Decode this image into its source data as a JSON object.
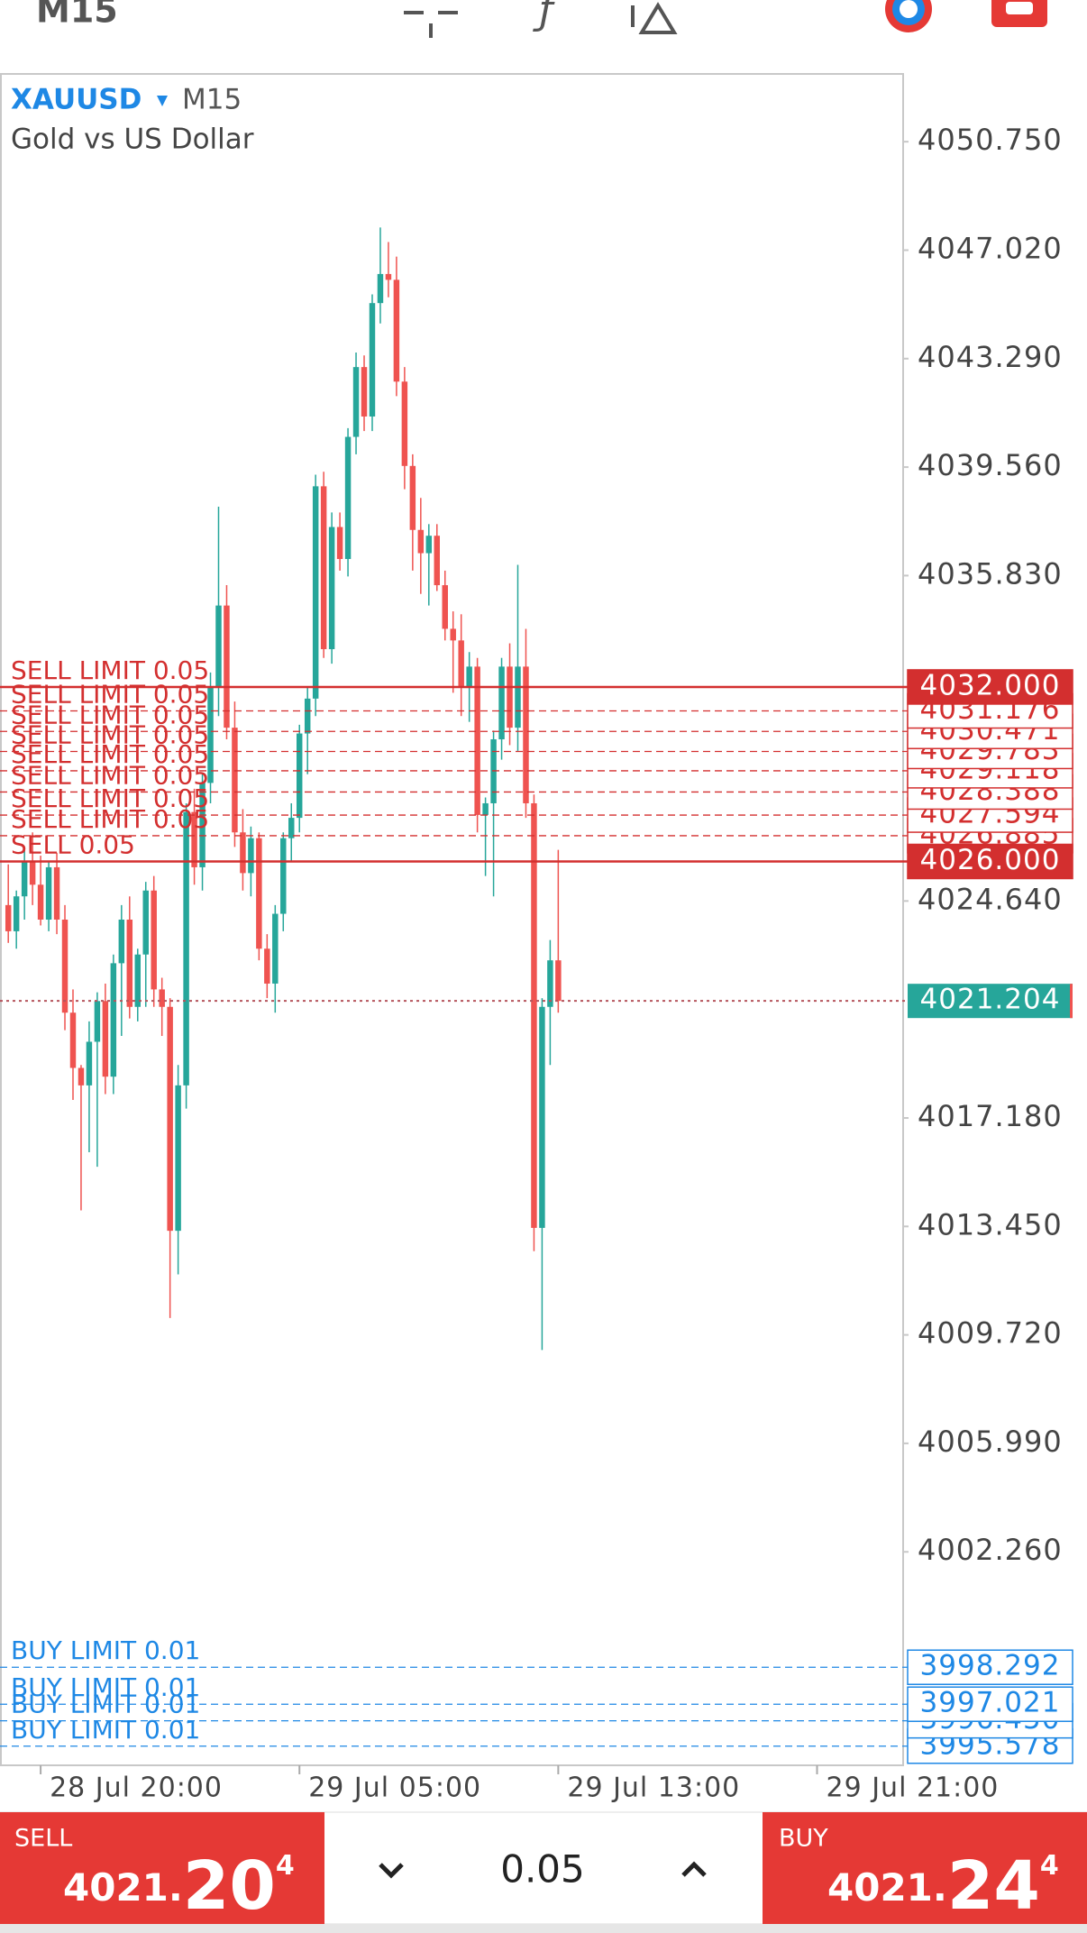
{
  "header": {
    "timeframe": "M15"
  },
  "chart_data": {
    "type": "candlestick",
    "symbol": "XAUUSD",
    "timeframe": "M15",
    "description": "Gold vs US Dollar",
    "up_color": "#26a69a",
    "down_color": "#ef5350",
    "ylim": [
      3994.92,
      4053.08
    ],
    "yticks": [
      {
        "value": 4050.75,
        "label": "4050.750"
      },
      {
        "value": 4047.02,
        "label": "4047.020"
      },
      {
        "value": 4043.29,
        "label": "4043.290"
      },
      {
        "value": 4039.56,
        "label": "4039.560"
      },
      {
        "value": 4035.83,
        "label": "4035.830"
      },
      {
        "value": 4024.64,
        "label": "4024.640"
      },
      {
        "value": 4017.18,
        "label": "4017.180"
      },
      {
        "value": 4013.45,
        "label": "4013.450"
      },
      {
        "value": 4009.72,
        "label": "4009.720"
      },
      {
        "value": 4005.99,
        "label": "4005.990"
      },
      {
        "value": 4002.26,
        "label": "4002.260"
      }
    ],
    "categories": [
      null,
      null,
      null,
      null,
      "28 Jul 20:00",
      null,
      null,
      null,
      null,
      null,
      null,
      null,
      null,
      null,
      null,
      null,
      null,
      null,
      null,
      null,
      null,
      null,
      null,
      null,
      null,
      null,
      null,
      null,
      null,
      null,
      null,
      null,
      null,
      null,
      null,
      null,
      "29 Jul 05:00",
      null,
      null,
      null,
      null,
      null,
      null,
      null,
      null,
      null,
      null,
      null,
      null,
      null,
      null,
      null,
      null,
      null,
      null,
      null,
      null,
      null,
      null,
      null,
      null,
      null,
      null,
      null,
      null,
      null,
      null,
      null,
      "29 Jul 13:00",
      null,
      null,
      null,
      null,
      null,
      null,
      null,
      null,
      null,
      null,
      null,
      null,
      null,
      null,
      null,
      null,
      null,
      null,
      null,
      null,
      null,
      null,
      null,
      null,
      null,
      null,
      null,
      null,
      null,
      null,
      null,
      "29 Jul 21:00"
    ],
    "open": [
      4024.5,
      4023.6,
      4024.8,
      4026.0,
      4025.2,
      4024.0,
      4025.8,
      4024.0,
      4020.8,
      4018.9,
      4018.3,
      4019.8,
      4021.2,
      4018.6,
      4022.5,
      4024.0,
      4021.0,
      4022.8,
      4025.0,
      4021.6,
      4021.0,
      4013.3,
      4018.3,
      4027.7,
      4025.8,
      4028.7,
      4032.0,
      4034.8,
      4030.6,
      4027.0,
      4025.6,
      4026.8,
      4023.0,
      4021.8,
      4024.2,
      4026.8,
      4027.5,
      4030.4,
      4031.6,
      4038.9,
      4033.3,
      4037.5,
      4036.4,
      4040.6,
      4043.0,
      4041.3,
      4045.2,
      4046.2,
      4046.0,
      4042.5,
      4039.6,
      4037.4,
      4036.6,
      4037.2,
      4035.5,
      4034.0,
      4033.6,
      4032.0,
      4032.7,
      4027.6,
      4028.0,
      4030.2,
      4032.7,
      4030.6,
      4032.7,
      4028.0,
      4013.4,
      4021.0,
      4022.6,
      null,
      null,
      null,
      null,
      null,
      null,
      null,
      null,
      null,
      null,
      null,
      null,
      null,
      null,
      null,
      null,
      null,
      null,
      null,
      null,
      null,
      null,
      null,
      null,
      null,
      null,
      null,
      null,
      null,
      null,
      null,
      null
    ],
    "high": [
      4025.9,
      4025.0,
      4026.5,
      4027.0,
      4026.2,
      4026.0,
      4026.3,
      4024.5,
      4021.6,
      4019.0,
      4020.5,
      4021.5,
      4021.8,
      4022.8,
      4024.5,
      4024.8,
      4023.0,
      4025.3,
      4025.5,
      4022.0,
      4021.3,
      4019.0,
      4028.0,
      4028.5,
      4029.0,
      4032.5,
      4038.2,
      4035.5,
      4031.5,
      4027.8,
      4027.2,
      4027.0,
      4023.5,
      4024.5,
      4027.0,
      4028.0,
      4030.7,
      4032.0,
      4039.3,
      4039.4,
      4038.0,
      4038.0,
      4040.9,
      4043.5,
      4043.4,
      4045.5,
      4047.8,
      4047.3,
      4046.8,
      4043.0,
      4040.0,
      4038.5,
      4037.6,
      4037.6,
      4036.0,
      4034.6,
      4034.5,
      4033.2,
      4033.0,
      4028.2,
      4030.5,
      4033.0,
      4033.5,
      4036.2,
      4034.0,
      4028.3,
      4021.3,
      4023.3,
      4026.4,
      null,
      null,
      null,
      null,
      null,
      null,
      null,
      null,
      null,
      null,
      null,
      null,
      null,
      null,
      null,
      null,
      null,
      null,
      null,
      null,
      null,
      null,
      null,
      null,
      null,
      null,
      null,
      null,
      null,
      null,
      null,
      null
    ],
    "low": [
      4023.2,
      4023.0,
      4024.0,
      4024.5,
      4023.8,
      4023.6,
      4023.5,
      4020.2,
      4017.8,
      4014.0,
      4016.0,
      4015.5,
      4018.0,
      4018.0,
      4020.0,
      4020.6,
      4020.5,
      4021.0,
      4021.0,
      4020.0,
      4010.3,
      4011.8,
      4017.5,
      4025.2,
      4025.0,
      4028.0,
      4031.0,
      4030.2,
      4026.5,
      4025.0,
      4024.8,
      4022.6,
      4021.3,
      4020.8,
      4023.6,
      4026.0,
      4027.0,
      4029.0,
      4031.0,
      4033.0,
      4032.8,
      4036.0,
      4035.8,
      4040.0,
      4040.8,
      4040.8,
      4044.5,
      4045.4,
      4042.0,
      4038.8,
      4036.0,
      4035.2,
      4034.8,
      4035.3,
      4033.6,
      4031.8,
      4031.0,
      4030.8,
      4027.0,
      4025.5,
      4024.8,
      4029.5,
      4030.0,
      4029.8,
      4027.5,
      4012.6,
      4009.2,
      4019.0,
      4020.8,
      null,
      null,
      null,
      null,
      null,
      null,
      null,
      null,
      null,
      null,
      null,
      null,
      null,
      null,
      null,
      null,
      null,
      null,
      null,
      null,
      null,
      null,
      null,
      null,
      null,
      null,
      null,
      null,
      null,
      null,
      null,
      null
    ],
    "close": [
      4023.6,
      4024.8,
      4026.0,
      4025.2,
      4024.0,
      4025.8,
      4024.0,
      4020.8,
      4018.9,
      4018.3,
      4019.8,
      4021.2,
      4018.6,
      4022.5,
      4024.0,
      4021.0,
      4022.8,
      4025.0,
      4021.6,
      4021.0,
      4013.3,
      4018.3,
      4027.7,
      4025.8,
      4028.7,
      4032.0,
      4034.8,
      4030.6,
      4027.0,
      4025.6,
      4026.8,
      4023.0,
      4021.8,
      4024.2,
      4026.8,
      4027.5,
      4030.4,
      4031.6,
      4038.9,
      4033.3,
      4037.5,
      4036.4,
      4040.6,
      4043.0,
      4041.3,
      4045.2,
      4046.2,
      4046.0,
      4042.5,
      4039.6,
      4037.4,
      4036.6,
      4037.2,
      4035.5,
      4034.0,
      4033.6,
      4032.0,
      4032.7,
      4027.6,
      4028.0,
      4030.2,
      4032.7,
      4030.6,
      4032.7,
      4028.0,
      4013.4,
      4021.0,
      4022.6,
      4021.204,
      null,
      null,
      null,
      null,
      null,
      null,
      null,
      null,
      null,
      null,
      null,
      null,
      null,
      null,
      null,
      null,
      null,
      null,
      null,
      null,
      null,
      null,
      null,
      null,
      null,
      null,
      null,
      null,
      null,
      null,
      null,
      null
    ],
    "sell_orders": {
      "color": "#d32f2f",
      "orders": [
        {
          "label": "SELL LIMIT 0.05",
          "price": {
            "value": 4032.0,
            "label": "4032.000"
          },
          "line": "solid"
        },
        {
          "label": "SELL LIMIT 0.05",
          "price": {
            "value": 4031.176,
            "label": "4031.176"
          },
          "line": "dashed"
        },
        {
          "label": "SELL LIMIT 0.05",
          "price": {
            "value": 4030.471,
            "label": "4030.471"
          },
          "line": "dashed"
        },
        {
          "label": "SELL LIMIT 0.05",
          "price": {
            "value": 4029.783,
            "label": "4029.783"
          },
          "line": "dashed"
        },
        {
          "label": "SELL LIMIT 0.05",
          "price": {
            "value": 4029.118,
            "label": "4029.118"
          },
          "line": "dashed"
        },
        {
          "label": "SELL LIMIT 0.05",
          "price": {
            "value": 4028.388,
            "label": "4028.388"
          },
          "line": "dashed"
        },
        {
          "label": "SELL LIMIT 0.05",
          "price": {
            "value": 4027.594,
            "label": "4027.594"
          },
          "line": "dashed"
        },
        {
          "label": "SELL LIMIT 0.05",
          "price": {
            "value": 4026.885,
            "label": "4026.885"
          },
          "line": "dashed"
        },
        {
          "label": "SELL 0.05",
          "price": {
            "value": 4026.0,
            "label": "4026.000"
          },
          "line": "solid"
        }
      ]
    },
    "buy_orders": {
      "color": "#1e88e5",
      "orders": [
        {
          "label": "BUY LIMIT 0.01",
          "price": {
            "value": 3998.292,
            "label": "3998.292"
          },
          "line": "dashed"
        },
        {
          "label": "BUY LIMIT 0.01",
          "price": {
            "value": 3997.021,
            "label": "3997.021"
          },
          "line": "dashed"
        },
        {
          "label": "BUY LIMIT 0.01",
          "price": {
            "value": 3996.45,
            "label": "3996.450"
          },
          "line": "dashed"
        },
        {
          "label": "BUY LIMIT 0.01",
          "price": {
            "value": 3995.578,
            "label": "3995.578"
          },
          "line": "dashed"
        }
      ]
    },
    "current_price": {
      "value": 4021.204,
      "label": "4021.204",
      "color": "#26a69a"
    }
  },
  "trade_panel": {
    "sell": {
      "label": "SELL",
      "price_prefix": "4021.",
      "price_pips": "20",
      "price_fraction": "4"
    },
    "volume": 0.05,
    "buy": {
      "label": "BUY",
      "price_prefix": "4021.",
      "price_pips": "24",
      "price_fraction": "4"
    }
  }
}
